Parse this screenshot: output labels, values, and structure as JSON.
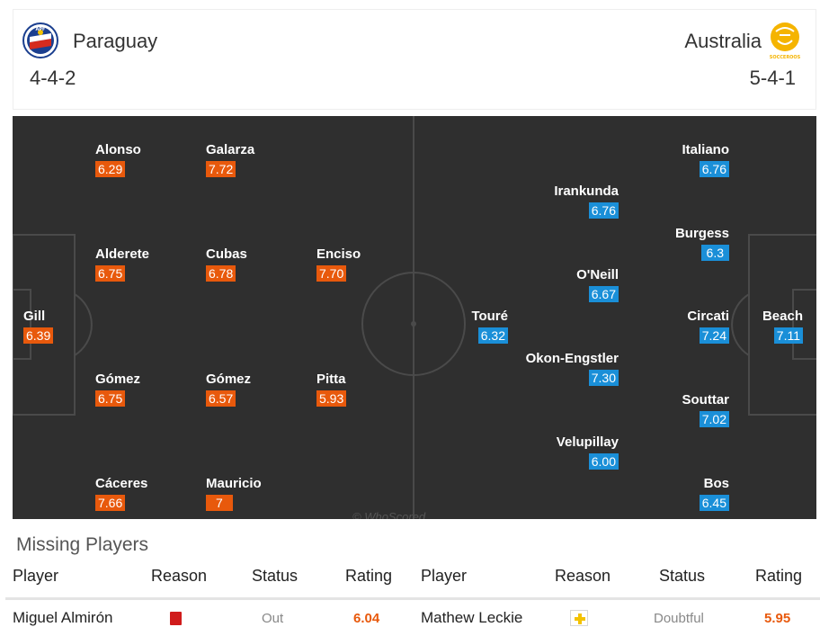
{
  "home": {
    "name": "Paraguay",
    "formation": "4-4-2",
    "logo_text": "APF",
    "color": "#e8590c"
  },
  "away": {
    "name": "Australia",
    "formation": "5-4-1",
    "logo_text": "SOCCEROOS",
    "color": "#1a8fd8"
  },
  "home_players": [
    {
      "name": "Gill",
      "rating": "6.39"
    },
    {
      "name": "Alonso",
      "rating": "6.29"
    },
    {
      "name": "Alderete",
      "rating": "6.75"
    },
    {
      "name": "Gómez",
      "rating": "6.75"
    },
    {
      "name": "Cáceres",
      "rating": "7.66"
    },
    {
      "name": "Galarza",
      "rating": "7.72"
    },
    {
      "name": "Cubas",
      "rating": "6.78"
    },
    {
      "name": "Gómez",
      "rating": "6.57"
    },
    {
      "name": "Mauricio",
      "rating": "7"
    },
    {
      "name": "Enciso",
      "rating": "7.70"
    },
    {
      "name": "Pitta",
      "rating": "5.93"
    }
  ],
  "away_players": [
    {
      "name": "Beach",
      "rating": "7.11"
    },
    {
      "name": "Italiano",
      "rating": "6.76"
    },
    {
      "name": "Burgess",
      "rating": "6.3"
    },
    {
      "name": "Circati",
      "rating": "7.24"
    },
    {
      "name": "Souttar",
      "rating": "7.02"
    },
    {
      "name": "Bos",
      "rating": "6.45"
    },
    {
      "name": "Irankunda",
      "rating": "6.76"
    },
    {
      "name": "O'Neill",
      "rating": "6.67"
    },
    {
      "name": "Okon-Engstler",
      "rating": "7.30"
    },
    {
      "name": "Velupillay",
      "rating": "6.00"
    },
    {
      "name": "Touré",
      "rating": "6.32"
    }
  ],
  "watermark": "© WhoScored",
  "missing": {
    "title": "Missing Players",
    "headers": [
      "Player",
      "Reason",
      "Status",
      "Rating",
      "Player",
      "Reason",
      "Status",
      "Rating"
    ],
    "home": {
      "player": "Miguel Almirón",
      "reason": "red-card-icon",
      "status": "Out",
      "rating": "6.04"
    },
    "away": {
      "player": "Mathew Leckie",
      "reason": "injury-icon",
      "status": "Doubtful",
      "rating": "5.95"
    }
  }
}
